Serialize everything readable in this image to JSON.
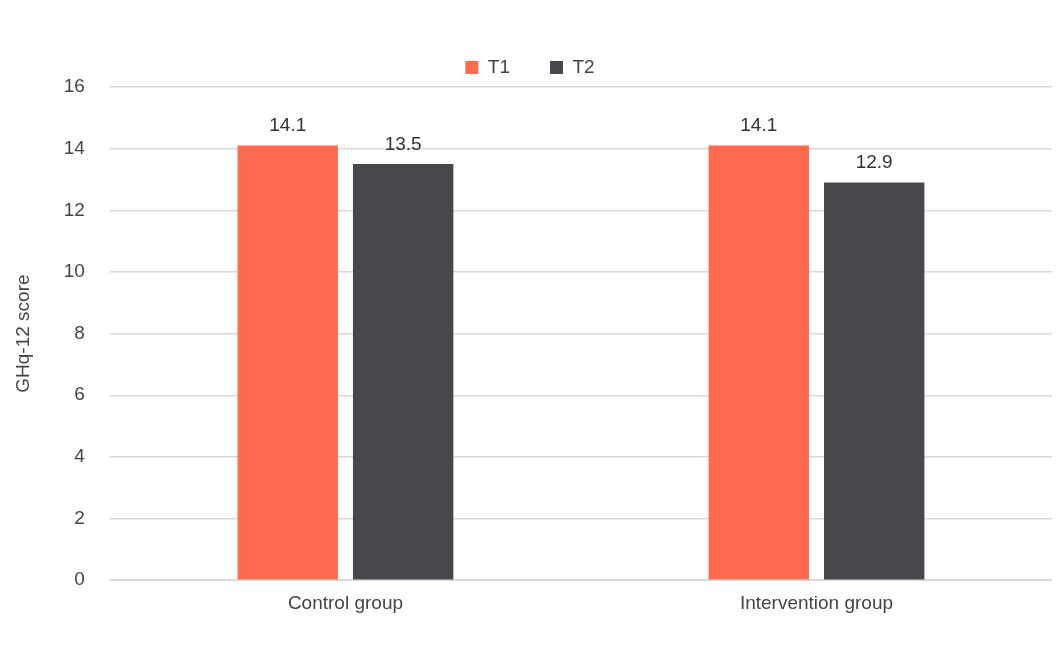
{
  "chart_data": {
    "type": "bar",
    "ylabel": "GHq-12 score",
    "categories": [
      "Control group",
      "Intervention group"
    ],
    "series": [
      {
        "name": "T1",
        "color": "#ff6b4f",
        "values": [
          14.1,
          14.1
        ]
      },
      {
        "name": "T2",
        "color": "#48484c",
        "values": [
          13.5,
          12.9
        ]
      }
    ],
    "ylim": [
      0,
      16
    ],
    "yticks": [
      0,
      2,
      4,
      6,
      8,
      10,
      12,
      14,
      16
    ],
    "grid": "y",
    "legend": "top",
    "data_labels": true
  }
}
